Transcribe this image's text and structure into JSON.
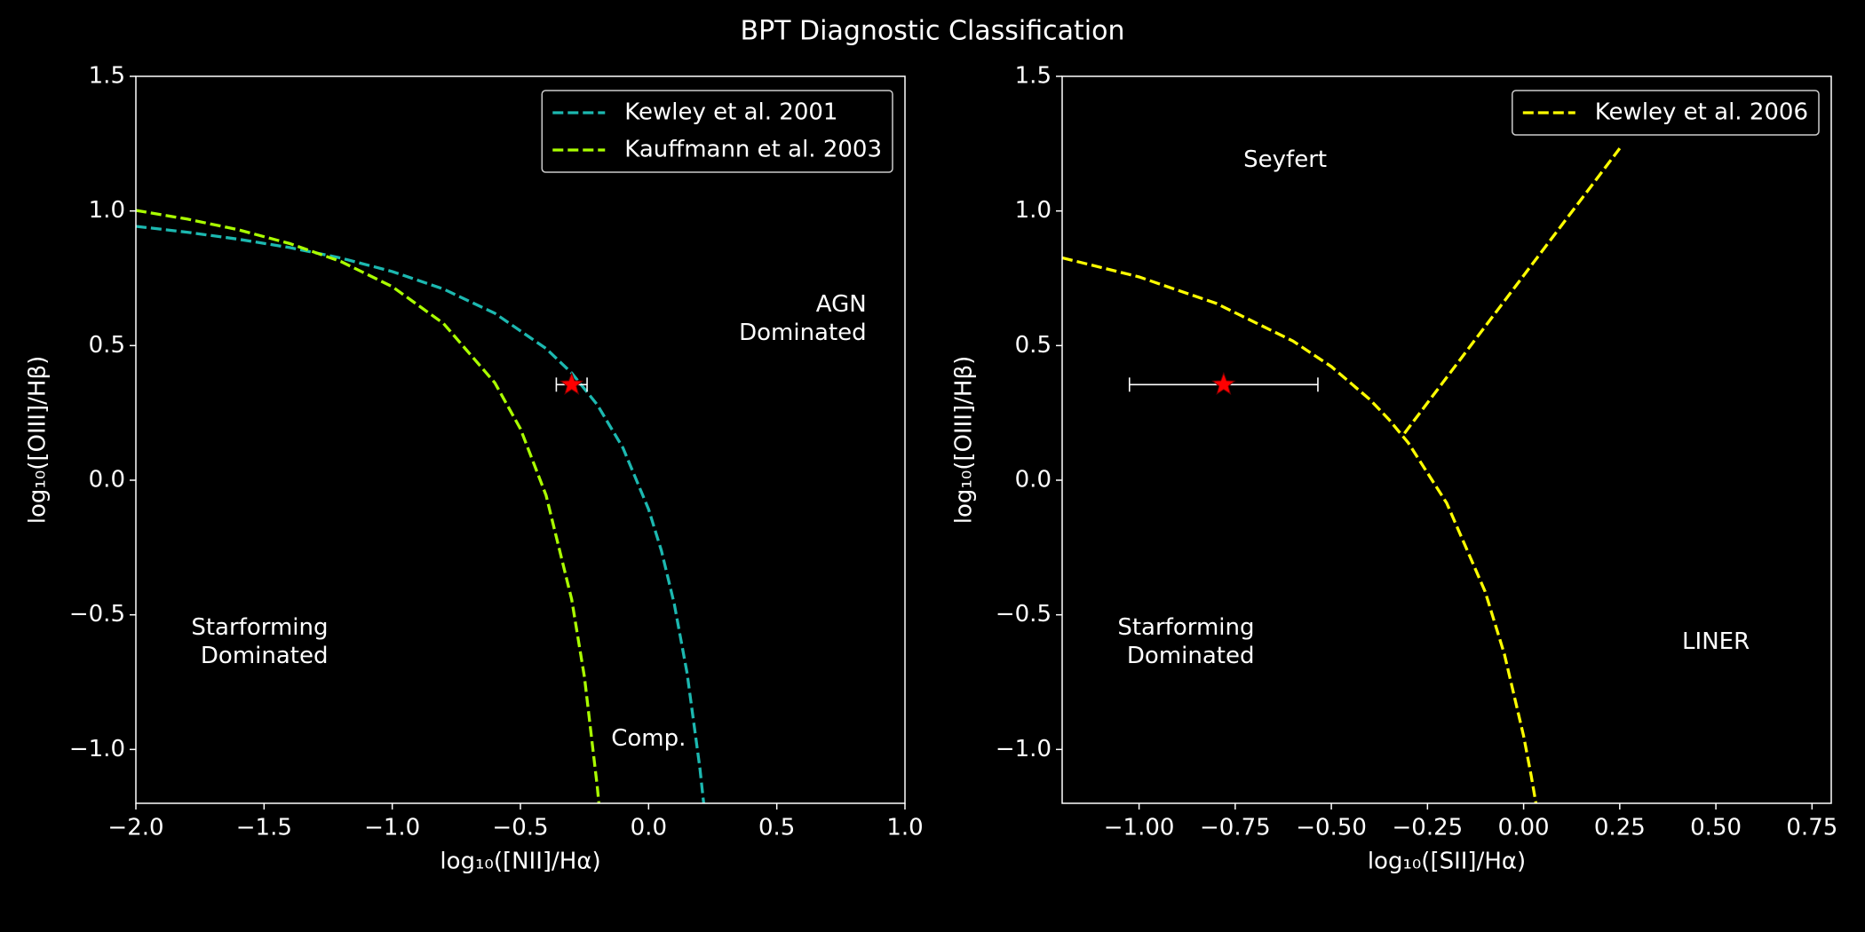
{
  "title": "BPT Diagnostic Classification",
  "chart_data": [
    {
      "type": "line",
      "xlabel": "log₁₀([NII]/Hα)",
      "ylabel": "log₁₀([OIII]/Hβ)",
      "xlim": [
        -2,
        1
      ],
      "ylim": [
        -1.2,
        1.5
      ],
      "xticks": [
        {
          "value": -2,
          "label": "−2.0"
        },
        {
          "value": -1.5,
          "label": "−1.5"
        },
        {
          "value": -1,
          "label": "−1.0"
        },
        {
          "value": -0.5,
          "label": "−0.5"
        },
        {
          "value": 0,
          "label": "0.0"
        },
        0.5,
        {
          "value": 1,
          "label": "1.0"
        }
      ],
      "yticks": [
        {
          "value": -1,
          "label": "−1.0"
        },
        {
          "value": -0.5,
          "label": "−0.5"
        },
        {
          "value": 0,
          "label": "0.0"
        },
        0.5,
        {
          "value": 1,
          "label": "1.0"
        },
        1.5
      ],
      "legend": "upper right",
      "series": [
        {
          "name": "Kewley et al. 2001",
          "color": "#1cb8b0",
          "x": [
            -2,
            -1.8,
            -1.6,
            -1.4,
            -1.2,
            -1.0,
            -0.8,
            -0.6,
            -0.4,
            -0.3,
            -0.2,
            -0.1,
            0,
            0.05,
            0.1,
            0.15,
            0.2,
            0.215
          ],
          "y": [
            0.943,
            0.921,
            0.895,
            0.864,
            0.825,
            0.775,
            0.71,
            0.62,
            0.489,
            0.398,
            0.28,
            0.12,
            -0.108,
            -0.262,
            -0.459,
            -0.716,
            -1.069,
            -1.202
          ]
        },
        {
          "name": "Kauffmann et al. 2003",
          "color": "#aaff00",
          "x": [
            -2,
            -1.8,
            -1.6,
            -1.4,
            -1.2,
            -1.0,
            -0.8,
            -0.6,
            -0.5,
            -0.4,
            -0.3,
            -0.25,
            -0.2,
            -0.194
          ],
          "y": [
            1.002,
            0.97,
            0.93,
            0.879,
            0.812,
            0.719,
            0.582,
            0.362,
            0.191,
            -0.056,
            -0.443,
            -0.733,
            -1.14,
            -1.2
          ]
        }
      ],
      "points": [
        {
          "x": -0.3,
          "y": 0.355,
          "xerr": 0.06,
          "color": "#ff0000"
        }
      ],
      "annotations": [
        {
          "text": "AGN\nDominated",
          "x": 0.85,
          "y": 0.6,
          "align": "right"
        },
        {
          "text": "Starforming\nDominated",
          "x": -1.25,
          "y": -0.6,
          "align": "right"
        },
        {
          "text": "Comp.",
          "x": 0.0,
          "y": -0.96,
          "align": "center"
        }
      ]
    },
    {
      "type": "line",
      "xlabel": "log₁₀([SII]/Hα)",
      "ylabel": "log₁₀([OIII]/Hβ)",
      "xlim": [
        -1.2,
        0.8
      ],
      "ylim": [
        -1.2,
        1.5
      ],
      "xticks": [
        {
          "value": -1,
          "label": "−1.00"
        },
        {
          "value": -0.75,
          "label": "−0.75"
        },
        {
          "value": -0.5,
          "label": "−0.50"
        },
        {
          "value": -0.25,
          "label": "−0.25"
        },
        {
          "value": 0,
          "label": "0.00"
        },
        0.25,
        {
          "value": 0.5,
          "label": "0.50"
        },
        0.75
      ],
      "yticks": [
        {
          "value": -1,
          "label": "−1.0"
        },
        {
          "value": -0.5,
          "label": "−0.5"
        },
        {
          "value": 0,
          "label": "0.0"
        },
        0.5,
        {
          "value": 1,
          "label": "1.0"
        },
        1.5
      ],
      "legend": "upper right",
      "series": [
        {
          "name": "Kewley et al. 2006",
          "color": "#ffff00",
          "x": [
            -1.2,
            -1.0,
            -0.8,
            -0.6,
            -0.5,
            -0.4,
            -0.35,
            -0.3,
            -0.2,
            -0.1,
            -0.05,
            0,
            0.02,
            0.032,
            null,
            -0.31,
            0.25
          ],
          "y": [
            0.826,
            0.755,
            0.657,
            0.517,
            0.422,
            0.3,
            0.225,
            0.139,
            -0.085,
            -0.414,
            -0.646,
            -0.95,
            -1.1,
            -1.2,
            null,
            0.174,
            1.2325
          ]
        }
      ],
      "points": [
        {
          "x": -0.78,
          "y": 0.355,
          "xerr": 0.245,
          "color": "#ff0000"
        }
      ],
      "annotations": [
        {
          "text": "Seyfert",
          "x": -0.62,
          "y": 1.19,
          "align": "center"
        },
        {
          "text": "Starforming\nDominated",
          "x": -0.7,
          "y": -0.6,
          "align": "right"
        },
        {
          "text": "LINER",
          "x": 0.5,
          "y": -0.6,
          "align": "center"
        }
      ]
    }
  ]
}
